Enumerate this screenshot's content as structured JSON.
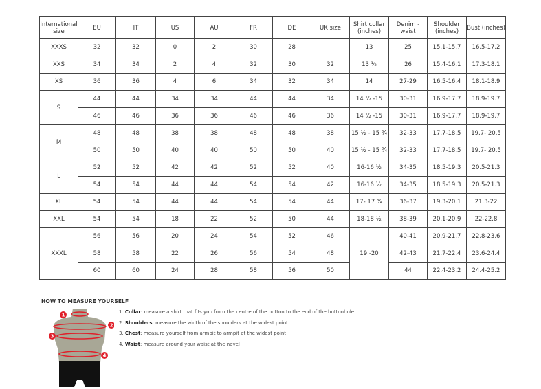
{
  "headers": [
    "International size",
    "EU",
    "IT",
    "US",
    "AU",
    "FR",
    "DE",
    "UK size",
    "Shirt collar (inches)",
    "Denim - waist",
    "Shoulder (inches)",
    "Bust (inches)"
  ],
  "groups": [
    {
      "size": "XXXS",
      "rows": [
        [
          "32",
          "32",
          "0",
          "2",
          "30",
          "28",
          "",
          "13",
          "25",
          "15.1-15.7",
          "16.5-17.2"
        ]
      ]
    },
    {
      "size": "XXS",
      "rows": [
        [
          "34",
          "34",
          "2",
          "4",
          "32",
          "30",
          "32",
          "13 ½",
          "26",
          "15.4-16.1",
          "17.3-18.1"
        ]
      ]
    },
    {
      "size": "XS",
      "rows": [
        [
          "36",
          "36",
          "4",
          "6",
          "34",
          "32",
          "34",
          "14",
          "27-29",
          "16.5-16.4",
          "18.1-18.9"
        ]
      ]
    },
    {
      "size": "S",
      "rows": [
        [
          "44",
          "44",
          "34",
          "34",
          "44",
          "44",
          "34",
          "14 ½ -15",
          "30-31",
          "16.9-17.7",
          "18.9-19.7"
        ],
        [
          "46",
          "46",
          "36",
          "36",
          "46",
          "46",
          "36",
          "14 ½ -15",
          "30-31",
          "16.9-17.7",
          "18.9-19.7"
        ]
      ]
    },
    {
      "size": "M",
      "rows": [
        [
          "48",
          "48",
          "38",
          "38",
          "48",
          "48",
          "38",
          "15 ½ - 15 ¾",
          "32-33",
          "17.7-18.5",
          "19.7- 20.5"
        ],
        [
          "50",
          "50",
          "40",
          "40",
          "50",
          "50",
          "40",
          "15 ½ - 15 ¾",
          "32-33",
          "17.7-18.5",
          "19.7- 20.5"
        ]
      ]
    },
    {
      "size": "L",
      "rows": [
        [
          "52",
          "52",
          "42",
          "42",
          "52",
          "52",
          "40",
          "16-16 ½",
          "34-35",
          "18.5-19.3",
          "20.5-21.3"
        ],
        [
          "54",
          "54",
          "44",
          "44",
          "54",
          "54",
          "42",
          "16-16 ½",
          "34-35",
          "18.5-19.3",
          "20.5-21.3"
        ]
      ]
    },
    {
      "size": "XL",
      "rows": [
        [
          "54",
          "54",
          "44",
          "44",
          "54",
          "54",
          "44",
          "17- 17 ¾",
          "36-37",
          "19.3-20.1",
          "21.3-22"
        ]
      ]
    },
    {
      "size": "XXL",
      "rows": [
        [
          "54",
          "54",
          "18",
          "22",
          "52",
          "50",
          "44",
          "18-18 ½",
          "38-39",
          "20.1-20.9",
          "22-22.8"
        ]
      ]
    },
    {
      "size": "XXXL",
      "collar": "19 -20",
      "rows": [
        [
          "56",
          "56",
          "20",
          "24",
          "54",
          "52",
          "46",
          null,
          "40-41",
          "20.9-21.7",
          "22.8-23.6"
        ],
        [
          "58",
          "58",
          "22",
          "26",
          "56",
          "54",
          "48",
          null,
          "42-43",
          "21.7-22.4",
          "23.6-24.4"
        ],
        [
          "60",
          "60",
          "24",
          "28",
          "58",
          "56",
          "50",
          null,
          "44",
          "22.4-23.2",
          "24.4-25.2"
        ]
      ]
    }
  ],
  "measure": {
    "title": "HOW TO MEASURE YOURSELF",
    "items": [
      {
        "num": "1.",
        "term": "Collar",
        "desc": ": measure a shirt that fits you from the centre of the button to the end of the buttonhole"
      },
      {
        "num": "2.",
        "term": "Shoulders",
        "desc": ": measure the width of the shoulders at the widest point"
      },
      {
        "num": "3.",
        "term": "Chest",
        "desc": ": measure yourself from armpit to armpit at the widest point"
      },
      {
        "num": "4.",
        "term": "Waist",
        "desc": ": measure around your waist at the navel"
      }
    ],
    "markers": [
      "1",
      "2",
      "3",
      "4"
    ],
    "colors": {
      "marker": "#e0202a",
      "body": "#a8a796",
      "shorts": "#111111"
    }
  }
}
